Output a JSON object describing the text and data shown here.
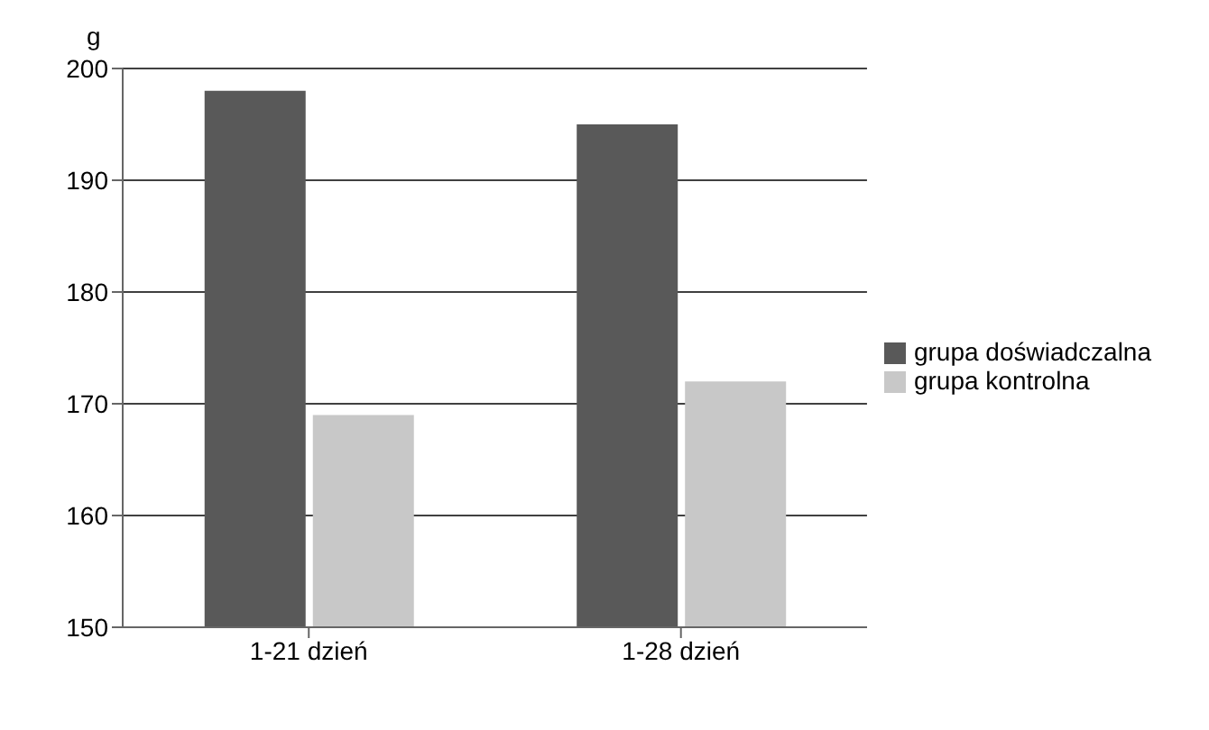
{
  "chart_data": {
    "type": "bar",
    "ylabel": "g",
    "categories": [
      "1-21 dzień",
      "1-28 dzień"
    ],
    "series": [
      {
        "name": "grupa doświadczalna",
        "color": "#595959",
        "values": [
          198,
          195
        ]
      },
      {
        "name": "grupa kontrolna",
        "color": "#c8c8c8",
        "values": [
          169,
          172
        ]
      }
    ],
    "ylim": [
      150,
      200
    ],
    "yticks": [
      150,
      160,
      170,
      180,
      190,
      200
    ],
    "grid": "y",
    "legend": "right"
  }
}
